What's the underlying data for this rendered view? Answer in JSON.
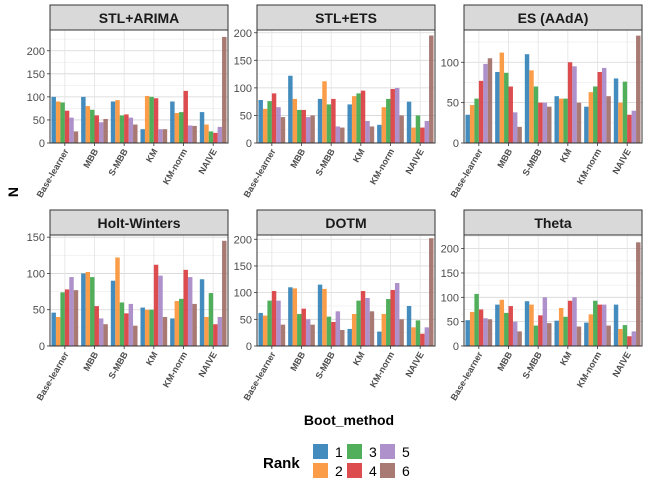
{
  "chart_data": {
    "type": "bar",
    "xlabel": "Boot_method",
    "ylabel": "N",
    "categories": [
      "Base-learner",
      "MBB",
      "S-MBB",
      "KM",
      "KM-norm",
      "NAIVE"
    ],
    "legend": {
      "title": "Rank",
      "position": "bottom",
      "entries": [
        "1",
        "2",
        "3",
        "4",
        "5",
        "6"
      ],
      "colors": [
        "#2f7fb6",
        "#fb9234",
        "#3ea64a",
        "#d9393b",
        "#a585c5",
        "#9e6b64"
      ]
    },
    "grid": true,
    "panels": [
      {
        "title": "STL+ARIMA",
        "ylim": [
          0,
          245
        ],
        "yticks": [
          0,
          50,
          100,
          150,
          200
        ],
        "values": [
          [
            100,
            90,
            88,
            70,
            55,
            25
          ],
          [
            100,
            80,
            72,
            60,
            45,
            52
          ],
          [
            90,
            93,
            60,
            62,
            55,
            40
          ],
          [
            30,
            102,
            100,
            97,
            30,
            30
          ],
          [
            90,
            65,
            67,
            113,
            38,
            37
          ],
          [
            67,
            40,
            25,
            22,
            35,
            230
          ]
        ]
      },
      {
        "title": "STL+ETS",
        "ylim": [
          0,
          205
        ],
        "yticks": [
          0,
          50,
          100,
          150,
          200
        ],
        "values": [
          [
            78,
            62,
            76,
            90,
            65,
            47
          ],
          [
            122,
            80,
            60,
            60,
            47,
            50
          ],
          [
            80,
            112,
            70,
            80,
            30,
            28
          ],
          [
            70,
            85,
            90,
            95,
            40,
            30
          ],
          [
            33,
            65,
            80,
            98,
            100,
            50
          ],
          [
            75,
            28,
            50,
            28,
            40,
            195
          ]
        ]
      },
      {
        "title": "ES (AAdA)",
        "ylim": [
          0,
          140
        ],
        "yticks": [
          0,
          50,
          100
        ],
        "values": [
          [
            35,
            47,
            55,
            77,
            98,
            105
          ],
          [
            88,
            112,
            87,
            70,
            38,
            20
          ],
          [
            110,
            90,
            70,
            50,
            50,
            45
          ],
          [
            58,
            55,
            55,
            100,
            95,
            50
          ],
          [
            45,
            63,
            70,
            88,
            93,
            58
          ],
          [
            80,
            50,
            76,
            35,
            40,
            133
          ]
        ]
      },
      {
        "title": "Holt-Winters",
        "ylim": [
          0,
          153
        ],
        "yticks": [
          0,
          50,
          100,
          150
        ],
        "values": [
          [
            46,
            40,
            74,
            78,
            95,
            77
          ],
          [
            100,
            102,
            95,
            55,
            38,
            30
          ],
          [
            90,
            122,
            60,
            45,
            58,
            28
          ],
          [
            53,
            50,
            50,
            112,
            97,
            40
          ],
          [
            38,
            62,
            65,
            105,
            95,
            58
          ],
          [
            92,
            40,
            73,
            30,
            40,
            145
          ]
        ]
      },
      {
        "title": "DOTM",
        "ylim": [
          0,
          208
        ],
        "yticks": [
          0,
          50,
          100,
          150,
          200
        ],
        "values": [
          [
            62,
            57,
            85,
            103,
            85,
            40
          ],
          [
            110,
            108,
            60,
            70,
            50,
            40
          ],
          [
            115,
            107,
            55,
            45,
            65,
            30
          ],
          [
            32,
            60,
            85,
            103,
            90,
            65
          ],
          [
            27,
            60,
            88,
            105,
            118,
            50
          ],
          [
            75,
            35,
            48,
            23,
            35,
            202
          ]
        ]
      },
      {
        "title": "Theta",
        "ylim": [
          0,
          228
        ],
        "yticks": [
          0,
          50,
          100,
          150,
          200
        ],
        "values": [
          [
            53,
            70,
            107,
            75,
            57,
            55
          ],
          [
            85,
            95,
            68,
            82,
            50,
            30
          ],
          [
            92,
            85,
            42,
            63,
            100,
            47
          ],
          [
            52,
            78,
            60,
            93,
            100,
            40
          ],
          [
            48,
            65,
            93,
            85,
            85,
            42
          ],
          [
            85,
            35,
            43,
            20,
            30,
            213
          ]
        ]
      }
    ]
  }
}
